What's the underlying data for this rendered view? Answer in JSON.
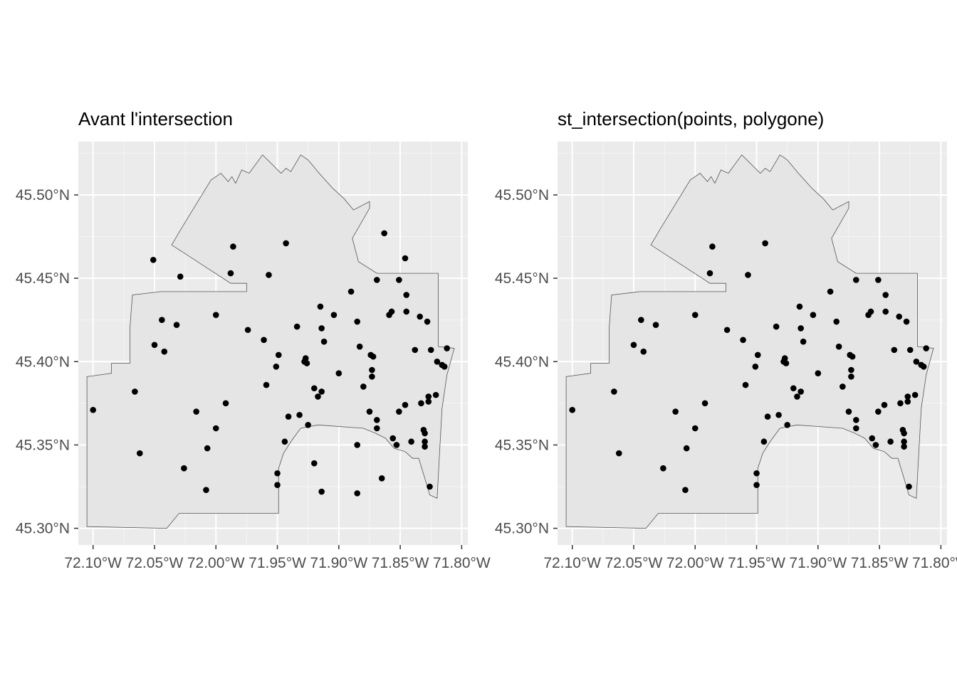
{
  "chart_data": [
    {
      "type": "scatter",
      "title": "Avant l'intersection",
      "x_ticks": [
        "72.10°W",
        "72.05°W",
        "72.00°W",
        "71.95°W",
        "71.90°W",
        "71.85°W",
        "71.80°W"
      ],
      "y_ticks": [
        "45.30°N",
        "45.35°N",
        "45.40°N",
        "45.45°N",
        "45.50°N"
      ],
      "xlim": [
        -72.112,
        -71.795
      ],
      "ylim": [
        45.29,
        45.532
      ],
      "grid": true,
      "points": "all"
    },
    {
      "type": "scatter",
      "title": "st_intersection(points, polygone)",
      "x_ticks": [
        "72.10°W",
        "72.05°W",
        "72.00°W",
        "71.95°W",
        "71.90°W",
        "71.85°W",
        "71.80°W"
      ],
      "y_ticks": [
        "45.30°N",
        "45.35°N",
        "45.40°N",
        "45.45°N",
        "45.50°N"
      ],
      "xlim": [
        -72.112,
        -71.795
      ],
      "ylim": [
        45.29,
        45.532
      ],
      "grid": true,
      "points": "inside"
    }
  ],
  "polygon": [
    [
      -72.105,
      45.301
    ],
    [
      -72.04,
      45.3
    ],
    [
      -72.03,
      45.309
    ],
    [
      -71.949,
      45.309
    ],
    [
      -71.949,
      45.336
    ],
    [
      -71.945,
      45.345
    ],
    [
      -71.938,
      45.353
    ],
    [
      -71.931,
      45.36
    ],
    [
      -71.917,
      45.362
    ],
    [
      -71.88,
      45.36
    ],
    [
      -71.87,
      45.357
    ],
    [
      -71.862,
      45.354
    ],
    [
      -71.855,
      45.348
    ],
    [
      -71.846,
      45.346
    ],
    [
      -71.84,
      45.342
    ],
    [
      -71.835,
      45.342
    ],
    [
      -71.83,
      45.33
    ],
    [
      -71.826,
      45.32
    ],
    [
      -71.82,
      45.318
    ],
    [
      -71.818,
      45.345
    ],
    [
      -71.816,
      45.372
    ],
    [
      -71.812,
      45.392
    ],
    [
      -71.806,
      45.408
    ],
    [
      -71.819,
      45.409
    ],
    [
      -71.819,
      45.453
    ],
    [
      -71.869,
      45.453
    ],
    [
      -71.884,
      45.46
    ],
    [
      -71.889,
      45.474
    ],
    [
      -71.882,
      45.483
    ],
    [
      -71.875,
      45.492
    ],
    [
      -71.875,
      45.496
    ],
    [
      -71.888,
      45.491
    ],
    [
      -71.896,
      45.498
    ],
    [
      -71.905,
      45.504
    ],
    [
      -71.916,
      45.513
    ],
    [
      -71.925,
      45.521
    ],
    [
      -71.931,
      45.524
    ],
    [
      -71.939,
      45.514
    ],
    [
      -71.943,
      45.516
    ],
    [
      -71.947,
      45.513
    ],
    [
      -71.962,
      45.524
    ],
    [
      -71.973,
      45.513
    ],
    [
      -71.979,
      45.515
    ],
    [
      -71.984,
      45.507
    ],
    [
      -71.987,
      45.511
    ],
    [
      -71.99,
      45.508
    ],
    [
      -71.996,
      45.513
    ],
    [
      -72.004,
      45.509
    ],
    [
      -72.028,
      45.48
    ],
    [
      -72.036,
      45.47
    ],
    [
      -71.988,
      45.447
    ],
    [
      -71.975,
      45.447
    ],
    [
      -71.975,
      45.442
    ],
    [
      -71.988,
      45.442
    ],
    [
      -72.045,
      45.442
    ],
    [
      -72.068,
      45.44
    ],
    [
      -72.07,
      45.42
    ],
    [
      -72.07,
      45.399
    ],
    [
      -72.085,
      45.399
    ],
    [
      -72.085,
      45.393
    ],
    [
      -72.105,
      45.391
    ]
  ],
  "points": [
    [
      -72.1,
      45.371
    ],
    [
      -72.066,
      45.382
    ],
    [
      -72.062,
      45.345
    ],
    [
      -72.051,
      45.461
    ],
    [
      -72.05,
      45.41
    ],
    [
      -72.044,
      45.425
    ],
    [
      -72.042,
      45.406
    ],
    [
      -72.032,
      45.422
    ],
    [
      -72.029,
      45.451
    ],
    [
      -72.026,
      45.336
    ],
    [
      -72.016,
      45.37
    ],
    [
      -72.008,
      45.323
    ],
    [
      -72.007,
      45.348
    ],
    [
      -72.0,
      45.428
    ],
    [
      -72.0,
      45.36
    ],
    [
      -71.992,
      45.375
    ],
    [
      -71.988,
      45.453
    ],
    [
      -71.986,
      45.469
    ],
    [
      -71.974,
      45.419
    ],
    [
      -71.961,
      45.413
    ],
    [
      -71.959,
      45.386
    ],
    [
      -71.957,
      45.452
    ],
    [
      -71.951,
      45.397
    ],
    [
      -71.95,
      45.333
    ],
    [
      -71.95,
      45.326
    ],
    [
      -71.949,
      45.404
    ],
    [
      -71.944,
      45.352
    ],
    [
      -71.943,
      45.471
    ],
    [
      -71.941,
      45.367
    ],
    [
      -71.934,
      45.421
    ],
    [
      -71.932,
      45.368
    ],
    [
      -71.928,
      45.4
    ],
    [
      -71.927,
      45.402
    ],
    [
      -71.926,
      45.399
    ],
    [
      -71.925,
      45.362
    ],
    [
      -71.92,
      45.339
    ],
    [
      -71.92,
      45.384
    ],
    [
      -71.917,
      45.379
    ],
    [
      -71.915,
      45.433
    ],
    [
      -71.914,
      45.42
    ],
    [
      -71.914,
      45.382
    ],
    [
      -71.914,
      45.322
    ],
    [
      -71.912,
      45.412
    ],
    [
      -71.904,
      45.428
    ],
    [
      -71.9,
      45.393
    ],
    [
      -71.89,
      45.442
    ],
    [
      -71.885,
      45.424
    ],
    [
      -71.885,
      45.35
    ],
    [
      -71.885,
      45.321
    ],
    [
      -71.883,
      45.409
    ],
    [
      -71.88,
      45.385
    ],
    [
      -71.875,
      45.37
    ],
    [
      -71.874,
      45.404
    ],
    [
      -71.873,
      45.395
    ],
    [
      -71.873,
      45.391
    ],
    [
      -71.872,
      45.403
    ],
    [
      -71.869,
      45.36
    ],
    [
      -71.869,
      45.449
    ],
    [
      -71.869,
      45.365
    ],
    [
      -71.865,
      45.33
    ],
    [
      -71.863,
      45.477
    ],
    [
      -71.859,
      45.428
    ],
    [
      -71.857,
      45.43
    ],
    [
      -71.856,
      45.354
    ],
    [
      -71.853,
      45.35
    ],
    [
      -71.851,
      45.37
    ],
    [
      -71.851,
      45.449
    ],
    [
      -71.846,
      45.462
    ],
    [
      -71.846,
      45.374
    ],
    [
      -71.845,
      45.43
    ],
    [
      -71.845,
      45.44
    ],
    [
      -71.841,
      45.352
    ],
    [
      -71.838,
      45.407
    ],
    [
      -71.834,
      45.427
    ],
    [
      -71.833,
      45.375
    ],
    [
      -71.831,
      45.359
    ],
    [
      -71.83,
      45.357
    ],
    [
      -71.83,
      45.352
    ],
    [
      -71.83,
      45.349
    ],
    [
      -71.828,
      45.424
    ],
    [
      -71.827,
      45.376
    ],
    [
      -71.827,
      45.379
    ],
    [
      -71.826,
      45.325
    ],
    [
      -71.825,
      45.407
    ],
    [
      -71.821,
      45.38
    ],
    [
      -71.82,
      45.4
    ],
    [
      -71.816,
      45.398
    ],
    [
      -71.814,
      45.397
    ],
    [
      -71.812,
      45.408
    ]
  ],
  "outside_points": [
    [
      -72.051,
      45.461
    ],
    [
      -72.029,
      45.451
    ],
    [
      -71.863,
      45.477
    ],
    [
      -71.846,
      45.462
    ],
    [
      -71.92,
      45.339
    ],
    [
      -71.914,
      45.322
    ],
    [
      -71.885,
      45.35
    ],
    [
      -71.885,
      45.321
    ],
    [
      -71.865,
      45.33
    ]
  ]
}
